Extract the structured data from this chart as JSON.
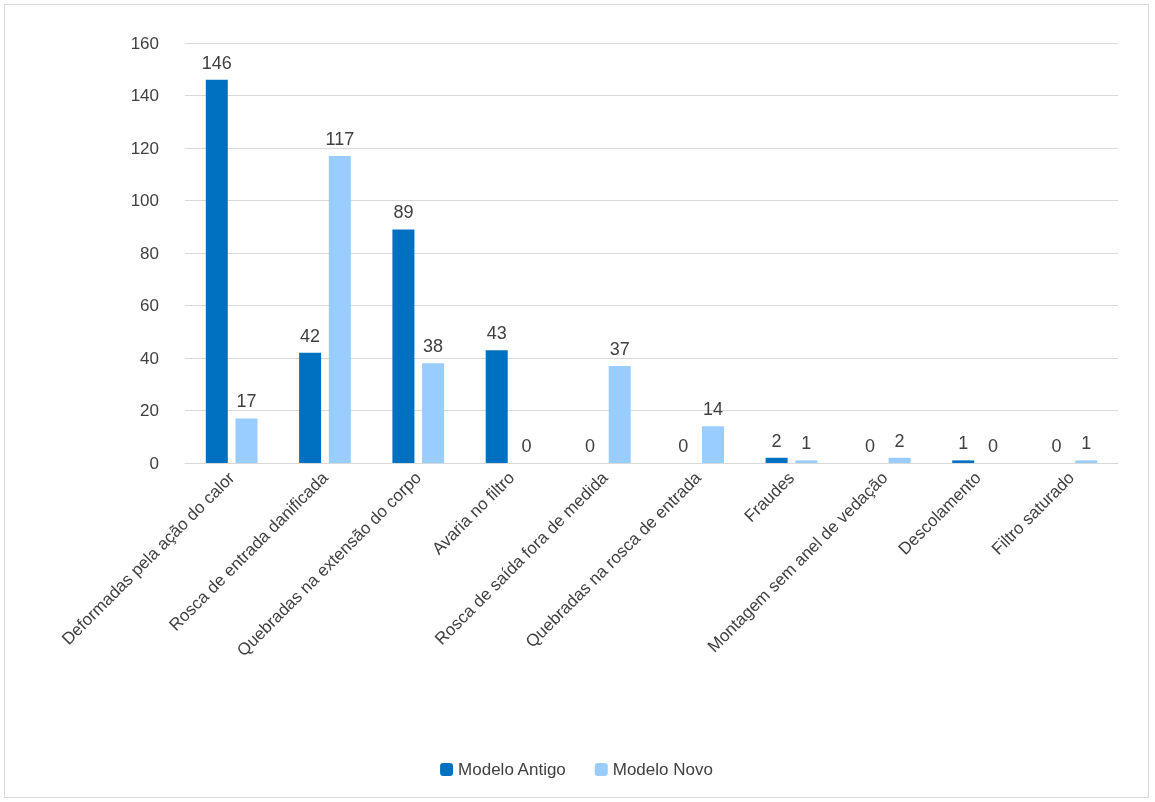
{
  "chart_data": {
    "type": "bar",
    "categories": [
      "Deformadas pela ação do calor",
      "Rosca de entrada danificada",
      "Quebradas na extensão do corpo",
      "Avaria no filtro",
      "Rosca de saída fora de medida",
      "Quebradas na rosca de entrada",
      "Fraudes",
      "Montagem sem anel de vedação",
      "Descolamento",
      "Filtro saturado"
    ],
    "series": [
      {
        "name": "Modelo Antigo",
        "color": "#0070c0",
        "values": [
          146,
          42,
          89,
          43,
          0,
          0,
          2,
          0,
          1,
          0
        ]
      },
      {
        "name": "Modelo Novo",
        "color": "#99ccff",
        "values": [
          17,
          117,
          38,
          0,
          37,
          14,
          1,
          2,
          0,
          1
        ]
      }
    ],
    "ylim": [
      0,
      160
    ],
    "yticks": [
      0,
      20,
      40,
      60,
      80,
      100,
      120,
      140,
      160
    ],
    "grid": "y",
    "legend": "bottom",
    "data_labels": true
  }
}
